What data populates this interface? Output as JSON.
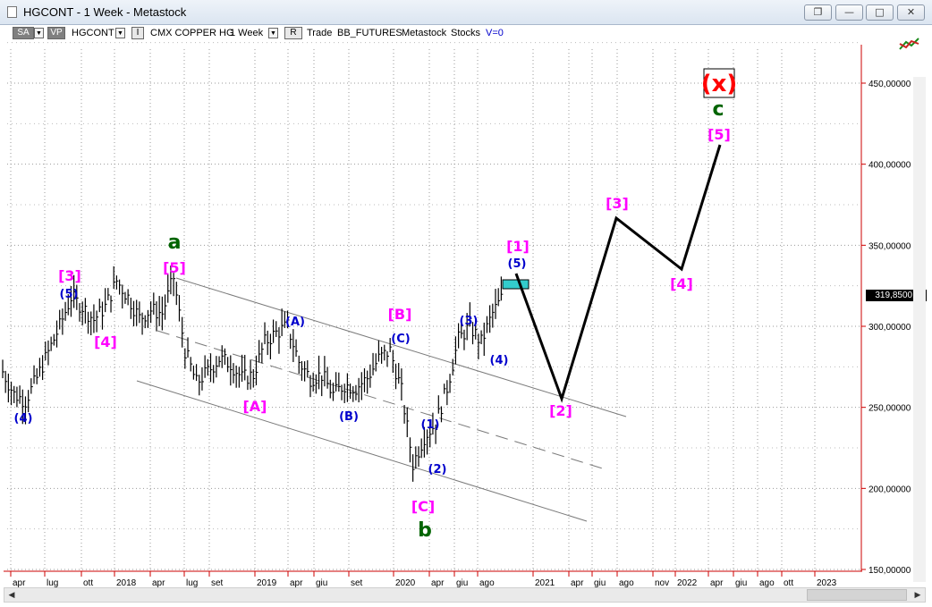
{
  "window": {
    "title": "HGCONT - 1 Week - Metastock",
    "restore_icon": "restore-window-icon",
    "minimize_icon": "minimize-icon",
    "maximize_icon": "maximize-icon",
    "close_icon": "close-icon"
  },
  "toolbar": {
    "sa_label": "SA",
    "vp_label": "VP",
    "symbol": "HGCONT",
    "i_label": "I",
    "instrument": "CMX COPPER HG",
    "period": "1 Week",
    "r_label": "R",
    "trade": "Trade",
    "exchange": "BB_FUTURES",
    "source": "Metastock",
    "type": "Stocks",
    "volume": "V=0"
  },
  "chart_data": {
    "type": "bar",
    "title": "",
    "y_ticks": [
      "450,00000",
      "400,00000",
      "350,00000",
      "300,00000",
      "250,00000",
      "200,00000",
      "150,00000"
    ],
    "y_tick_values": [
      450,
      400,
      350,
      300,
      250,
      200,
      150
    ],
    "ylim": [
      145,
      480
    ],
    "last_price": "319,85001",
    "x_ticks": [
      "apr",
      "lug",
      "ott",
      "2018",
      "apr",
      "lug",
      "set",
      "2019",
      "apr",
      "giu",
      "set",
      "2020",
      "apr",
      "giu",
      "ago",
      "2021",
      "apr",
      "giu",
      "ago",
      "nov",
      "2022",
      "apr",
      "giu",
      "ago",
      "ott",
      "2023"
    ],
    "grid": true,
    "colors": {
      "price_bar": "#000000",
      "wave_magenta": "#ff00ff",
      "wave_blue": "#0000cc",
      "wave_green": "#006400",
      "wave_red": "#ff0000",
      "channel": "#777777",
      "target_box": "#33cccc",
      "axis": "#cc0000"
    },
    "wave_labels": [
      {
        "text": "(4)",
        "color": "blue"
      },
      {
        "text": "[3]",
        "color": "magenta"
      },
      {
        "text": "(5)",
        "color": "blue"
      },
      {
        "text": "[4]",
        "color": "magenta"
      },
      {
        "text": "a",
        "color": "green"
      },
      {
        "text": "[5]",
        "color": "magenta"
      },
      {
        "text": "[A]",
        "color": "magenta"
      },
      {
        "text": "(A)",
        "color": "blue"
      },
      {
        "text": "(B)",
        "color": "blue"
      },
      {
        "text": "[B]",
        "color": "magenta"
      },
      {
        "text": "(C)",
        "color": "blue"
      },
      {
        "text": "(1)",
        "color": "blue"
      },
      {
        "text": "(2)",
        "color": "blue"
      },
      {
        "text": "[C]",
        "color": "magenta"
      },
      {
        "text": "b",
        "color": "green"
      },
      {
        "text": "(3)",
        "color": "blue"
      },
      {
        "text": "(4)",
        "color": "blue"
      },
      {
        "text": "(5)",
        "color": "blue"
      },
      {
        "text": "[1]",
        "color": "magenta"
      },
      {
        "text": "[2]",
        "color": "magenta"
      },
      {
        "text": "[3]",
        "color": "magenta"
      },
      {
        "text": "[4]",
        "color": "magenta"
      },
      {
        "text": "[5]",
        "color": "magenta"
      },
      {
        "text": "c",
        "color": "green"
      },
      {
        "text": "(x)",
        "color": "red"
      }
    ],
    "price_series": [
      {
        "date": "2017-03",
        "value": 272
      },
      {
        "date": "2017-04",
        "value": 258
      },
      {
        "date": "2017-05",
        "value": 254
      },
      {
        "date": "2017-06",
        "value": 268
      },
      {
        "date": "2017-07",
        "value": 284
      },
      {
        "date": "2017-08",
        "value": 300
      },
      {
        "date": "2017-09",
        "value": 318
      },
      {
        "date": "2017-10",
        "value": 312
      },
      {
        "date": "2017-11",
        "value": 304
      },
      {
        "date": "2017-12",
        "value": 312
      },
      {
        "date": "2018-01",
        "value": 328
      },
      {
        "date": "2018-02",
        "value": 318
      },
      {
        "date": "2018-03",
        "value": 305
      },
      {
        "date": "2018-04",
        "value": 310
      },
      {
        "date": "2018-05",
        "value": 308
      },
      {
        "date": "2018-06",
        "value": 330
      },
      {
        "date": "2018-07",
        "value": 285
      },
      {
        "date": "2018-08",
        "value": 265
      },
      {
        "date": "2018-09",
        "value": 272
      },
      {
        "date": "2018-10",
        "value": 280
      },
      {
        "date": "2018-11",
        "value": 277
      },
      {
        "date": "2018-12",
        "value": 268
      },
      {
        "date": "2019-01",
        "value": 270
      },
      {
        "date": "2019-02",
        "value": 290
      },
      {
        "date": "2019-03",
        "value": 296
      },
      {
        "date": "2019-04",
        "value": 300
      },
      {
        "date": "2019-05",
        "value": 278
      },
      {
        "date": "2019-06",
        "value": 268
      },
      {
        "date": "2019-07",
        "value": 270
      },
      {
        "date": "2019-08",
        "value": 258
      },
      {
        "date": "2019-09",
        "value": 264
      },
      {
        "date": "2019-10",
        "value": 262
      },
      {
        "date": "2019-11",
        "value": 268
      },
      {
        "date": "2019-12",
        "value": 280
      },
      {
        "date": "2020-01",
        "value": 285
      },
      {
        "date": "2020-02",
        "value": 260
      },
      {
        "date": "2020-03",
        "value": 215
      },
      {
        "date": "2020-04",
        "value": 232
      },
      {
        "date": "2020-05",
        "value": 240
      },
      {
        "date": "2020-06",
        "value": 262
      },
      {
        "date": "2020-07",
        "value": 292
      },
      {
        "date": "2020-08",
        "value": 300
      },
      {
        "date": "2020-09",
        "value": 290
      },
      {
        "date": "2020-10",
        "value": 308
      },
      {
        "date": "2020-11",
        "value": 319.85
      }
    ],
    "projection": [
      {
        "date": "2020-11",
        "value": 333
      },
      {
        "date": "2021-02",
        "value": 256
      },
      {
        "date": "2021-08",
        "value": 367
      },
      {
        "date": "2021-12",
        "value": 336
      },
      {
        "date": "2022-05",
        "value": 411
      }
    ]
  }
}
